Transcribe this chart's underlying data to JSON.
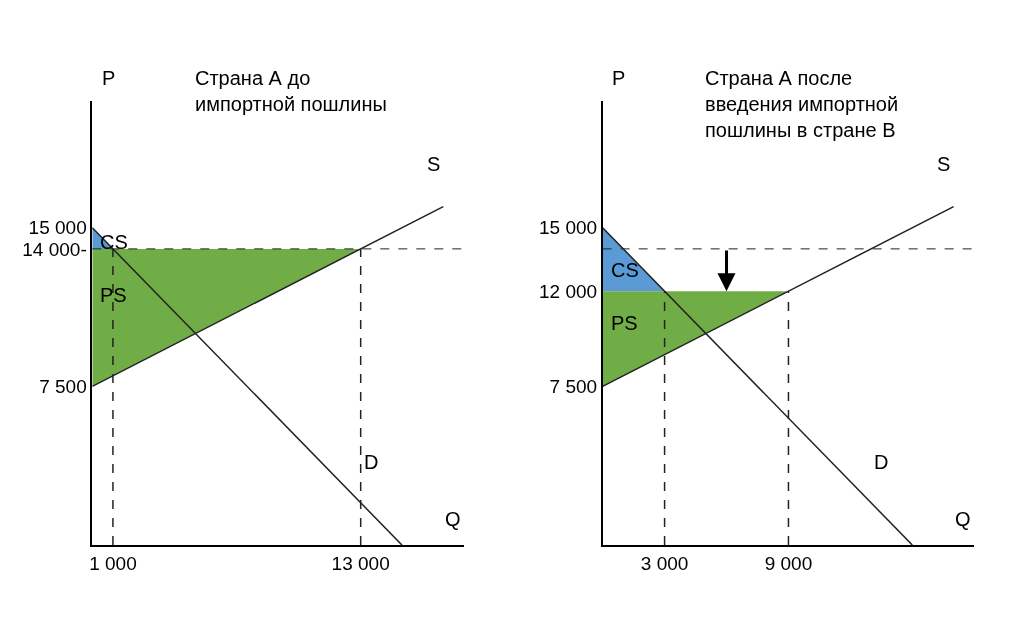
{
  "chart_data": [
    {
      "type": "line",
      "title": "Страна А до импортной пошлины",
      "xlabel": "Q",
      "ylabel": "P",
      "xlim": [
        0,
        18000
      ],
      "ylim": [
        0,
        21000
      ],
      "xticks": [
        {
          "value": 1000,
          "label": "1 000"
        },
        {
          "value": 13000,
          "label": "13 000"
        }
      ],
      "yticks": [
        {
          "value": 7500,
          "label": "7 500"
        },
        {
          "value": 14000,
          "label": "14 000-"
        },
        {
          "value": 15000,
          "label": "15 000"
        }
      ],
      "legend": false,
      "series": [
        {
          "type": "area",
          "name": "CS",
          "color": "#5b9bd5",
          "x": [
            0,
            0,
            1000
          ],
          "values": [
            15000,
            14000,
            14000
          ]
        },
        {
          "type": "area",
          "name": "PS",
          "color": "#70ad47",
          "x": [
            0,
            0,
            13000
          ],
          "values": [
            7500,
            14000,
            14000
          ]
        },
        {
          "name": "S",
          "color": "#222222",
          "x": [
            0,
            17000
          ],
          "values": [
            7500,
            16000
          ]
        },
        {
          "name": "D",
          "color": "#222222",
          "x": [
            0,
            15000
          ],
          "values": [
            15000,
            0
          ]
        },
        {
          "color": "#222222",
          "line_style": "dashed",
          "x": [
            1000,
            1000
          ],
          "values": [
            0,
            14000
          ]
        },
        {
          "color": "#222222",
          "line_style": "dashed",
          "x": [
            13000,
            13000
          ],
          "values": [
            0,
            14000
          ]
        }
      ],
      "ref_lines": [
        {
          "axis": "y",
          "value": 14000,
          "color": "#222222",
          "line_style": "dashed"
        }
      ]
    },
    {
      "type": "line",
      "title": "Страна А после введения импортной пошлины в стране В",
      "xlabel": "Q",
      "ylabel": "P",
      "xlim": [
        0,
        18000
      ],
      "ylim": [
        0,
        21000
      ],
      "xticks": [
        {
          "value": 3000,
          "label": "3 000"
        },
        {
          "value": 9000,
          "label": "9 000"
        }
      ],
      "yticks": [
        {
          "value": 7500,
          "label": "7 500"
        },
        {
          "value": 12000,
          "label": "12 000"
        },
        {
          "value": 15000,
          "label": "15 000"
        }
      ],
      "legend": false,
      "series": [
        {
          "type": "area",
          "name": "CS",
          "color": "#5b9bd5",
          "x": [
            0,
            0,
            3000
          ],
          "values": [
            15000,
            12000,
            12000
          ]
        },
        {
          "type": "area",
          "name": "PS",
          "color": "#70ad47",
          "x": [
            0,
            0,
            9000
          ],
          "values": [
            7500,
            12000,
            12000
          ]
        },
        {
          "name": "S",
          "color": "#222222",
          "x": [
            0,
            17000
          ],
          "values": [
            7500,
            16000
          ]
        },
        {
          "name": "D",
          "color": "#222222",
          "x": [
            0,
            15000
          ],
          "values": [
            15000,
            0
          ]
        },
        {
          "color": "#222222",
          "line_style": "dashed",
          "x": [
            3000,
            3000
          ],
          "values": [
            0,
            12000
          ]
        },
        {
          "color": "#222222",
          "line_style": "dashed",
          "x": [
            9000,
            9000
          ],
          "values": [
            0,
            12000
          ]
        }
      ],
      "ref_lines": [
        {
          "axis": "y",
          "value": 14000,
          "color": "#222222",
          "line_style": "dashed"
        }
      ]
    }
  ]
}
